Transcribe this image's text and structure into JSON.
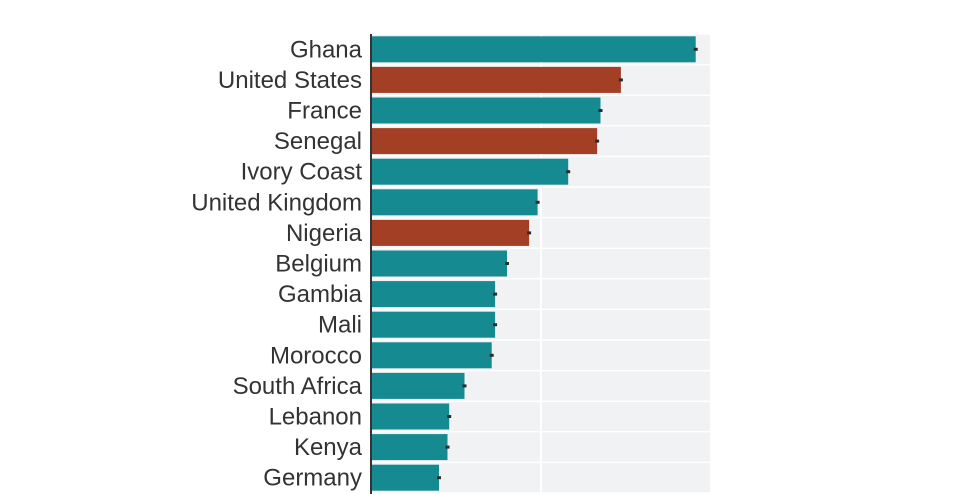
{
  "chart_data": {
    "type": "bar",
    "orientation": "horizontal",
    "title": "",
    "xlabel": "",
    "ylabel": "",
    "grid": true,
    "legend": "none",
    "xlim": [
      0,
      100
    ],
    "categories": [
      "Ghana",
      "United States",
      "France",
      "Senegal",
      "Ivory Coast",
      "United Kingdom",
      "Nigeria",
      "Belgium",
      "Gambia",
      "Mali",
      "Morocco",
      "South Africa",
      "Lebanon",
      "Kenya",
      "Germany"
    ],
    "values": [
      95.5,
      73.5,
      67.5,
      66.5,
      58,
      49,
      46.5,
      40,
      36.5,
      36.5,
      35.5,
      27.5,
      23,
      22.5,
      20
    ],
    "colors": [
      "#168a91",
      "#a23f24",
      "#168a91",
      "#a23f24",
      "#168a91",
      "#168a91",
      "#a23f24",
      "#168a91",
      "#168a91",
      "#168a91",
      "#168a91",
      "#168a91",
      "#168a91",
      "#168a91",
      "#168a91"
    ],
    "colors_meaning": {
      "teal": "#168a91",
      "rust": "#a23f24"
    },
    "background": "#f1f2f4",
    "gridline_color": "#ffffff"
  }
}
